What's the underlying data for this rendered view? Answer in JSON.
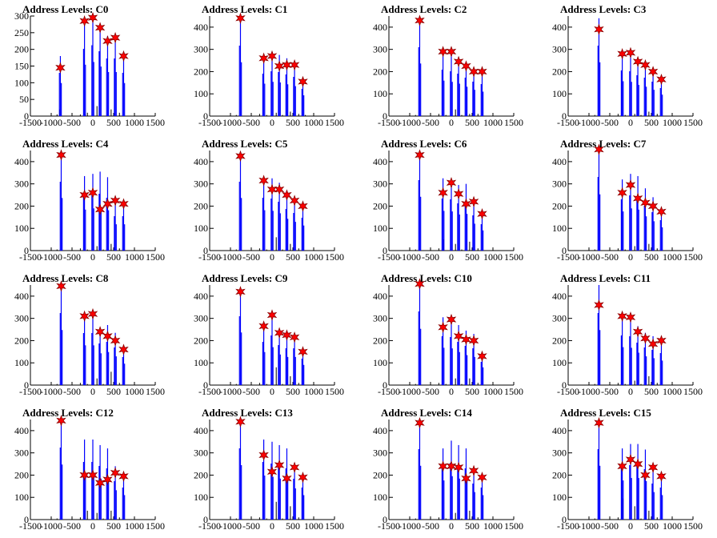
{
  "chart_data": [
    {
      "type": "bar",
      "title": "Address Levels: C0",
      "xlim": [
        -1500,
        1500
      ],
      "ylim": [
        0,
        300
      ],
      "x_ticks": [
        -1500,
        -1000,
        -500,
        0,
        500,
        1000,
        1500
      ],
      "y_ticks": [
        0,
        50,
        100,
        150,
        200,
        250,
        300
      ],
      "peaks_x": [
        -780,
        -200,
        0,
        175,
        355,
        540,
        740
      ],
      "peak_values": [
        180,
        280,
        295,
        270,
        240,
        240,
        180
      ],
      "marker_values": [
        145,
        285,
        295,
        265,
        225,
        235,
        180
      ],
      "minor_x": [
        -860,
        -790,
        -300,
        -190,
        -130,
        100,
        440,
        640
      ],
      "minor_values": [
        5,
        20,
        5,
        5,
        10,
        30,
        20,
        10
      ]
    },
    {
      "type": "bar",
      "title": "Address Levels: C1",
      "xlim": [
        -1500,
        1500
      ],
      "ylim": [
        0,
        450
      ],
      "x_ticks": [
        -1500,
        -1000,
        -500,
        0,
        500,
        1000,
        1500
      ],
      "y_ticks": [
        0,
        100,
        200,
        300,
        400
      ],
      "peaks_x": [
        -760,
        -200,
        0,
        175,
        355,
        540,
        740
      ],
      "peak_values": [
        440,
        265,
        280,
        275,
        260,
        245,
        170
      ],
      "marker_values": [
        440,
        260,
        270,
        225,
        230,
        230,
        155
      ],
      "minor_x": [
        -860,
        -300,
        -130,
        100,
        250,
        440,
        640,
        800
      ],
      "minor_values": [
        5,
        10,
        5,
        15,
        5,
        20,
        10,
        5
      ]
    },
    {
      "type": "bar",
      "title": "Address Levels: C2",
      "xlim": [
        -1500,
        1500
      ],
      "ylim": [
        0,
        450
      ],
      "x_ticks": [
        -1500,
        -1000,
        -500,
        0,
        500,
        1000,
        1500
      ],
      "y_ticks": [
        0,
        100,
        200,
        300,
        400
      ],
      "peaks_x": [
        -760,
        -200,
        0,
        175,
        355,
        540,
        740
      ],
      "peak_values": [
        430,
        290,
        280,
        265,
        240,
        215,
        200
      ],
      "marker_values": [
        430,
        290,
        290,
        245,
        225,
        200,
        200
      ],
      "minor_x": [
        -860,
        -300,
        -130,
        100,
        250,
        440,
        640
      ],
      "minor_values": [
        5,
        10,
        5,
        30,
        5,
        10,
        10
      ]
    },
    {
      "type": "bar",
      "title": "Address Levels: C3",
      "xlim": [
        -1500,
        1500
      ],
      "ylim": [
        0,
        450
      ],
      "x_ticks": [
        -1500,
        -1000,
        -500,
        0,
        500,
        1000,
        1500
      ],
      "y_ticks": [
        0,
        100,
        200,
        300,
        400
      ],
      "peaks_x": [
        -760,
        -200,
        0,
        175,
        355,
        540,
        740
      ],
      "peak_values": [
        440,
        285,
        280,
        255,
        240,
        215,
        175
      ],
      "marker_values": [
        390,
        280,
        285,
        245,
        230,
        200,
        165
      ],
      "minor_x": [
        -860,
        -300,
        -130,
        100,
        250,
        440,
        640
      ],
      "minor_values": [
        5,
        10,
        5,
        10,
        5,
        20,
        10
      ]
    },
    {
      "type": "bar",
      "title": "Address Levels: C4",
      "xlim": [
        -1500,
        1500
      ],
      "ylim": [
        0,
        450
      ],
      "x_ticks": [
        -1500,
        -1000,
        -500,
        0,
        500,
        1000,
        1500
      ],
      "y_ticks": [
        0,
        100,
        200,
        300,
        400
      ],
      "peaks_x": [
        -760,
        -200,
        0,
        175,
        355,
        540,
        740
      ],
      "peak_values": [
        430,
        335,
        345,
        355,
        330,
        215,
        215
      ],
      "marker_values": [
        430,
        250,
        260,
        185,
        210,
        225,
        210
      ],
      "minor_x": [
        -860,
        -300,
        -130,
        100,
        250,
        440,
        640
      ],
      "minor_values": [
        5,
        10,
        5,
        20,
        5,
        30,
        10
      ]
    },
    {
      "type": "bar",
      "title": "Address Levels: C5",
      "xlim": [
        -1500,
        1500
      ],
      "ylim": [
        0,
        450
      ],
      "x_ticks": [
        -1500,
        -1000,
        -500,
        0,
        500,
        1000,
        1500
      ],
      "y_ticks": [
        0,
        100,
        200,
        300,
        400
      ],
      "peaks_x": [
        -760,
        -200,
        0,
        175,
        355,
        540,
        740
      ],
      "peak_values": [
        430,
        330,
        325,
        305,
        260,
        235,
        205
      ],
      "marker_values": [
        425,
        315,
        275,
        275,
        250,
        225,
        200
      ],
      "minor_x": [
        -860,
        -300,
        -130,
        100,
        250,
        440,
        640
      ],
      "minor_values": [
        5,
        10,
        5,
        60,
        5,
        30,
        10
      ]
    },
    {
      "type": "bar",
      "title": "Address Levels: C6",
      "xlim": [
        -1500,
        1500
      ],
      "ylim": [
        0,
        450
      ],
      "x_ticks": [
        -1500,
        -1000,
        -500,
        0,
        500,
        1000,
        1500
      ],
      "y_ticks": [
        0,
        100,
        200,
        300,
        400
      ],
      "peaks_x": [
        -760,
        -200,
        0,
        175,
        355,
        540,
        740
      ],
      "peak_values": [
        440,
        325,
        320,
        295,
        300,
        220,
        165
      ],
      "marker_values": [
        430,
        260,
        305,
        255,
        210,
        220,
        165
      ],
      "minor_x": [
        -860,
        -300,
        -190,
        100,
        250,
        440,
        640
      ],
      "minor_values": [
        5,
        10,
        50,
        30,
        5,
        40,
        10
      ]
    },
    {
      "type": "bar",
      "title": "Address Levels: C7",
      "xlim": [
        -1500,
        1500
      ],
      "ylim": [
        0,
        450
      ],
      "x_ticks": [
        -1500,
        -1000,
        -500,
        0,
        500,
        1000,
        1500
      ],
      "y_ticks": [
        0,
        100,
        200,
        300,
        400
      ],
      "peaks_x": [
        -760,
        -200,
        0,
        175,
        355,
        540,
        740
      ],
      "peak_values": [
        460,
        320,
        345,
        335,
        280,
        240,
        190
      ],
      "marker_values": [
        455,
        260,
        295,
        235,
        215,
        200,
        175
      ],
      "minor_x": [
        -860,
        -300,
        -130,
        100,
        250,
        440,
        640
      ],
      "minor_values": [
        5,
        10,
        5,
        20,
        5,
        30,
        10
      ]
    },
    {
      "type": "bar",
      "title": "Address Levels: C8",
      "xlim": [
        -1500,
        1500
      ],
      "ylim": [
        0,
        450
      ],
      "x_ticks": [
        -1500,
        -1000,
        -500,
        0,
        500,
        1000,
        1500
      ],
      "y_ticks": [
        0,
        100,
        200,
        300,
        400
      ],
      "peaks_x": [
        -760,
        -200,
        0,
        175,
        355,
        540,
        740
      ],
      "peak_values": [
        450,
        325,
        325,
        260,
        270,
        235,
        175
      ],
      "marker_values": [
        445,
        310,
        320,
        240,
        220,
        200,
        160
      ],
      "minor_x": [
        -860,
        -300,
        -130,
        100,
        250,
        440,
        640
      ],
      "minor_values": [
        5,
        10,
        5,
        30,
        5,
        60,
        10
      ]
    },
    {
      "type": "bar",
      "title": "Address Levels: C9",
      "xlim": [
        -1500,
        1500
      ],
      "ylim": [
        0,
        450
      ],
      "x_ticks": [
        -1500,
        -1000,
        -500,
        0,
        500,
        1000,
        1500
      ],
      "y_ticks": [
        0,
        100,
        200,
        300,
        400
      ],
      "peaks_x": [
        -760,
        -200,
        0,
        175,
        355,
        540,
        740
      ],
      "peak_values": [
        430,
        270,
        310,
        250,
        230,
        230,
        165
      ],
      "marker_values": [
        420,
        265,
        315,
        235,
        225,
        215,
        150
      ],
      "minor_x": [
        -860,
        -300,
        -130,
        100,
        250,
        440,
        640
      ],
      "minor_values": [
        5,
        10,
        5,
        80,
        5,
        40,
        10
      ]
    },
    {
      "type": "bar",
      "title": "Address Levels: C10",
      "xlim": [
        -1500,
        1500
      ],
      "ylim": [
        0,
        450
      ],
      "x_ticks": [
        -1500,
        -1000,
        -500,
        0,
        500,
        1000,
        1500
      ],
      "y_ticks": [
        0,
        100,
        200,
        300,
        400
      ],
      "peaks_x": [
        -760,
        -200,
        0,
        175,
        355,
        540,
        740
      ],
      "peak_values": [
        460,
        305,
        300,
        270,
        245,
        230,
        145
      ],
      "marker_values": [
        455,
        260,
        295,
        220,
        205,
        200,
        130
      ],
      "minor_x": [
        -860,
        -300,
        -130,
        100,
        250,
        440,
        640
      ],
      "minor_values": [
        5,
        10,
        5,
        30,
        5,
        30,
        10
      ]
    },
    {
      "type": "bar",
      "title": "Address Levels: C11",
      "xlim": [
        -1500,
        1500
      ],
      "ylim": [
        0,
        450
      ],
      "x_ticks": [
        -1500,
        -1000,
        -500,
        0,
        500,
        1000,
        1500
      ],
      "y_ticks": [
        0,
        100,
        200,
        300,
        400
      ],
      "peaks_x": [
        -760,
        -200,
        0,
        175,
        355,
        540,
        740
      ],
      "peak_values": [
        450,
        310,
        305,
        265,
        235,
        220,
        200
      ],
      "marker_values": [
        360,
        310,
        305,
        240,
        210,
        185,
        200
      ],
      "minor_x": [
        -860,
        -300,
        -130,
        100,
        250,
        440,
        640
      ],
      "minor_values": [
        5,
        10,
        5,
        20,
        5,
        40,
        10
      ]
    },
    {
      "type": "bar",
      "title": "Address Levels: C12",
      "xlim": [
        -1500,
        1500
      ],
      "ylim": [
        0,
        450
      ],
      "x_ticks": [
        -1500,
        -1000,
        -500,
        0,
        500,
        1000,
        1500
      ],
      "y_ticks": [
        0,
        100,
        200,
        300,
        400
      ],
      "peaks_x": [
        -760,
        -200,
        0,
        175,
        355,
        540,
        740
      ],
      "peak_values": [
        450,
        360,
        360,
        335,
        320,
        240,
        200
      ],
      "marker_values": [
        445,
        200,
        200,
        165,
        180,
        210,
        195
      ],
      "minor_x": [
        -860,
        -300,
        -130,
        100,
        250,
        440,
        640
      ],
      "minor_values": [
        5,
        10,
        40,
        30,
        5,
        40,
        10
      ]
    },
    {
      "type": "bar",
      "title": "Address Levels: C13",
      "xlim": [
        -1500,
        1500
      ],
      "ylim": [
        0,
        450
      ],
      "x_ticks": [
        -1500,
        -1000,
        -500,
        0,
        500,
        1000,
        1500
      ],
      "y_ticks": [
        0,
        100,
        200,
        300,
        400
      ],
      "peaks_x": [
        -760,
        -200,
        0,
        175,
        355,
        540,
        740
      ],
      "peak_values": [
        445,
        360,
        350,
        335,
        320,
        255,
        200
      ],
      "marker_values": [
        440,
        290,
        215,
        245,
        185,
        235,
        190
      ],
      "minor_x": [
        -860,
        -300,
        -130,
        100,
        250,
        440,
        640
      ],
      "minor_values": [
        5,
        10,
        5,
        80,
        5,
        60,
        10
      ]
    },
    {
      "type": "bar",
      "title": "Address Levels: C14",
      "xlim": [
        -1500,
        1500
      ],
      "ylim": [
        0,
        450
      ],
      "x_ticks": [
        -1500,
        -1000,
        -500,
        0,
        500,
        1000,
        1500
      ],
      "y_ticks": [
        0,
        100,
        200,
        300,
        400
      ],
      "peaks_x": [
        -760,
        -200,
        0,
        175,
        355,
        540,
        740
      ],
      "peak_values": [
        440,
        320,
        355,
        335,
        320,
        225,
        200
      ],
      "marker_values": [
        435,
        240,
        240,
        235,
        185,
        220,
        190
      ],
      "minor_x": [
        -860,
        -300,
        -130,
        100,
        250,
        440,
        640
      ],
      "minor_values": [
        5,
        10,
        5,
        30,
        5,
        40,
        10
      ]
    },
    {
      "type": "bar",
      "title": "Address Levels: C15",
      "xlim": [
        -1500,
        1500
      ],
      "ylim": [
        0,
        450
      ],
      "x_ticks": [
        -1500,
        -1000,
        -500,
        0,
        500,
        1000,
        1500
      ],
      "y_ticks": [
        0,
        100,
        200,
        300,
        400
      ],
      "peaks_x": [
        -760,
        -200,
        0,
        175,
        355,
        540,
        740
      ],
      "peak_values": [
        440,
        320,
        340,
        340,
        315,
        225,
        200
      ],
      "marker_values": [
        435,
        240,
        270,
        250,
        200,
        235,
        195
      ],
      "minor_x": [
        -860,
        -300,
        -190,
        100,
        250,
        440,
        640
      ],
      "minor_values": [
        5,
        10,
        95,
        60,
        5,
        40,
        10
      ]
    }
  ]
}
